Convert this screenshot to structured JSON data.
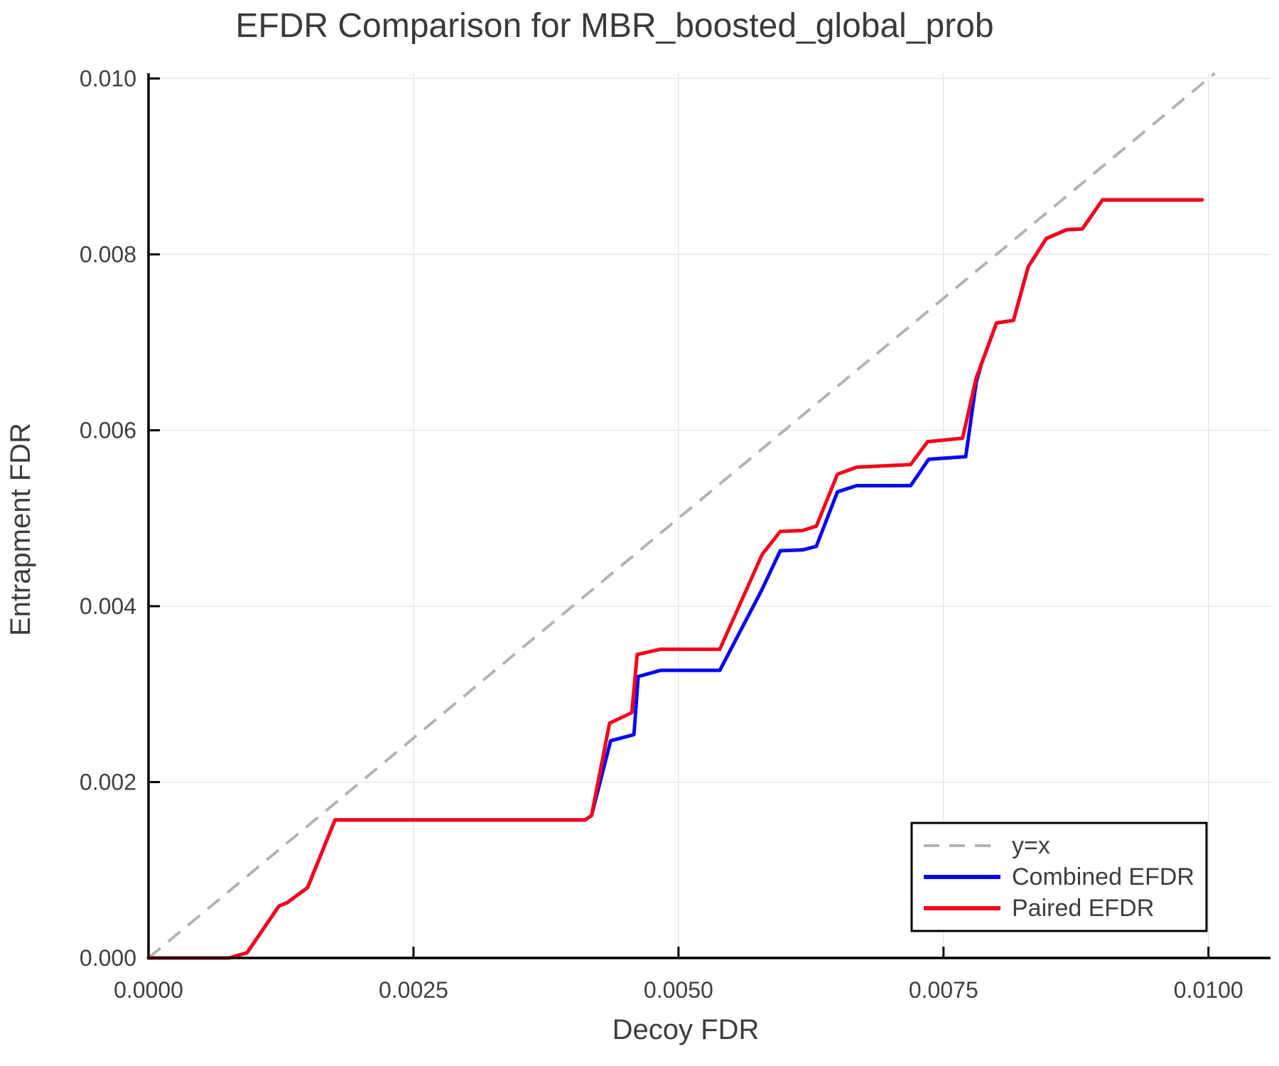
{
  "title": "EFDR Comparison for MBR_boosted_global_prob",
  "chart_data": {
    "type": "line",
    "title": "EFDR Comparison for MBR_boosted_global_prob",
    "xlabel": "Decoy FDR",
    "ylabel": "Entrapment FDR",
    "xlim": [
      0,
      0.010585
    ],
    "ylim": [
      0,
      0.01006
    ],
    "grid": true,
    "grid_color": "#e7e7e7",
    "spine_color": "#000000",
    "background": "#ffffff",
    "xticks": {
      "values": [
        0.0,
        0.0025,
        0.005,
        0.0075,
        0.01
      ],
      "labels": [
        "0.0000",
        "0.0025",
        "0.0050",
        "0.0075",
        "0.0100"
      ]
    },
    "yticks": {
      "values": [
        0.0,
        0.002,
        0.004,
        0.006,
        0.008,
        0.01
      ],
      "labels": [
        "0.000",
        "0.002",
        "0.004",
        "0.006",
        "0.008",
        "0.010"
      ]
    },
    "legend": {
      "position": "lower right",
      "border": true
    },
    "series": [
      {
        "name": "y=x",
        "type": "reference",
        "style": "dashed",
        "color": "#b3b3b3",
        "width": 4,
        "points": [
          [
            0,
            0
          ],
          [
            0.01006,
            0.01006
          ]
        ]
      },
      {
        "name": "Combined EFDR",
        "type": "line",
        "style": "solid",
        "color": "#0808f0",
        "width": 5,
        "points": [
          [
            0.0,
            0.0
          ],
          [
            0.00076,
            0.0
          ],
          [
            0.00093,
            6e-05
          ],
          [
            0.00123,
            0.00059
          ],
          [
            0.00131,
            0.00063
          ],
          [
            0.0015,
            0.0008
          ],
          [
            0.00176,
            0.00157
          ],
          [
            0.00412,
            0.00157
          ],
          [
            0.00418,
            0.00162
          ],
          [
            0.00436,
            0.00247
          ],
          [
            0.00458,
            0.00254
          ],
          [
            0.00462,
            0.0032
          ],
          [
            0.00483,
            0.00327
          ],
          [
            0.00539,
            0.00327
          ],
          [
            0.00578,
            0.00417
          ],
          [
            0.00596,
            0.00463
          ],
          [
            0.00617,
            0.00464
          ],
          [
            0.0063,
            0.00468
          ],
          [
            0.0065,
            0.0053
          ],
          [
            0.00668,
            0.00537
          ],
          [
            0.00719,
            0.00537
          ],
          [
            0.00736,
            0.00567
          ],
          [
            0.00771,
            0.0057
          ],
          [
            0.00781,
            0.00655
          ],
          [
            0.00786,
            0.00676
          ],
          [
            0.008,
            0.00722
          ],
          [
            0.00816,
            0.00725
          ],
          [
            0.0083,
            0.00786
          ],
          [
            0.00847,
            0.00818
          ],
          [
            0.00866,
            0.00828
          ],
          [
            0.00881,
            0.00829
          ],
          [
            0.009,
            0.00862
          ],
          [
            0.00994,
            0.00862
          ]
        ]
      },
      {
        "name": "Paired EFDR",
        "type": "line",
        "style": "solid",
        "color": "#f5051a",
        "width": 5,
        "points": [
          [
            0.0,
            0.0
          ],
          [
            0.00076,
            0.0
          ],
          [
            0.00093,
            6e-05
          ],
          [
            0.00123,
            0.00059
          ],
          [
            0.00131,
            0.00063
          ],
          [
            0.0015,
            0.0008
          ],
          [
            0.00176,
            0.00157
          ],
          [
            0.00412,
            0.00157
          ],
          [
            0.00418,
            0.00162
          ],
          [
            0.00435,
            0.00267
          ],
          [
            0.00456,
            0.00279
          ],
          [
            0.00461,
            0.00345
          ],
          [
            0.00483,
            0.00351
          ],
          [
            0.00539,
            0.00351
          ],
          [
            0.00579,
            0.00459
          ],
          [
            0.00596,
            0.00485
          ],
          [
            0.00617,
            0.00486
          ],
          [
            0.0063,
            0.00491
          ],
          [
            0.0065,
            0.0055
          ],
          [
            0.00668,
            0.00558
          ],
          [
            0.00719,
            0.00561
          ],
          [
            0.00735,
            0.00587
          ],
          [
            0.00768,
            0.00591
          ],
          [
            0.00781,
            0.0066
          ],
          [
            0.00786,
            0.00676
          ],
          [
            0.008,
            0.00722
          ],
          [
            0.00816,
            0.00725
          ],
          [
            0.0083,
            0.00786
          ],
          [
            0.00847,
            0.00818
          ],
          [
            0.00866,
            0.00828
          ],
          [
            0.00881,
            0.00829
          ],
          [
            0.009,
            0.00862
          ],
          [
            0.00994,
            0.00862
          ]
        ]
      }
    ]
  }
}
